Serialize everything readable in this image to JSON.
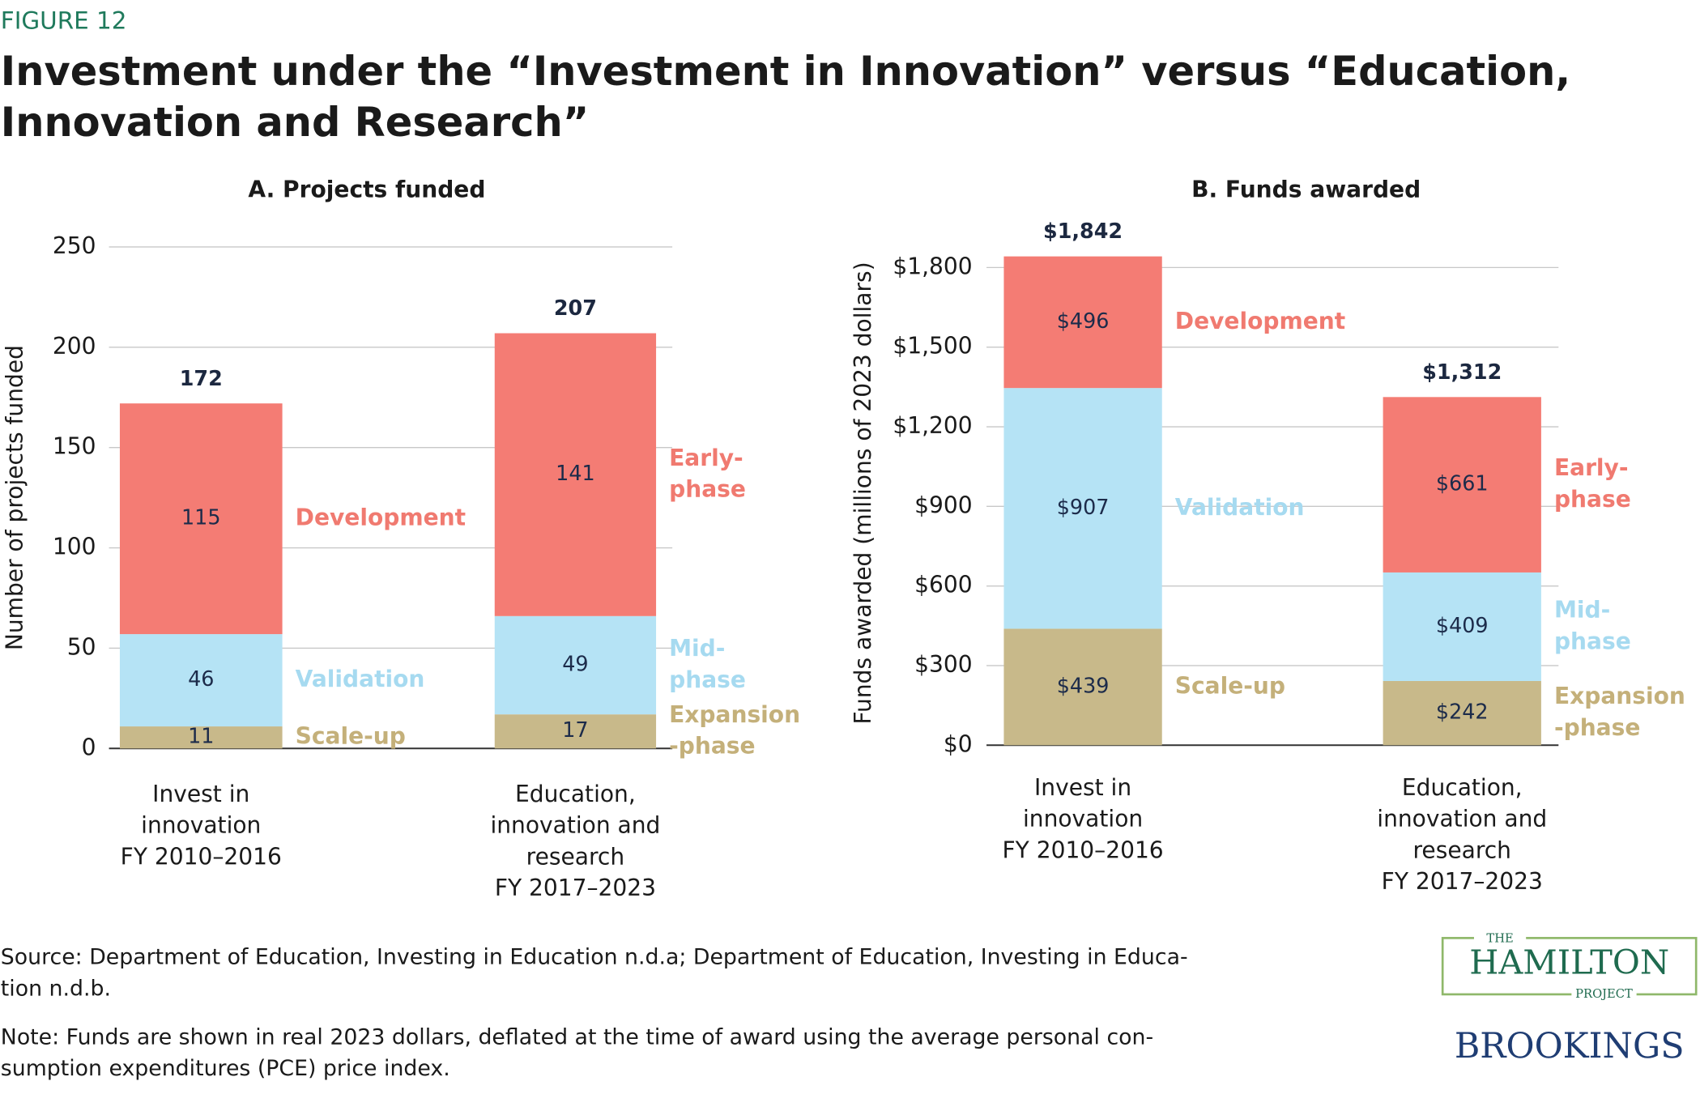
{
  "figure_label": "FIGURE 12",
  "title": "Investment under the “Investment in Innovation” versus “Education,\nInnovation and Research”",
  "chart_data": [
    {
      "type": "bar",
      "stacked": true,
      "title": "A. Projects funded",
      "y_label": "Number of projects funded",
      "categories": [
        "Invest in\ninnovation\nFY 2010–2016",
        "Education,\ninnovation and\nresearch\nFY 2017–2023"
      ],
      "series": [
        {
          "name": "Scale-up",
          "color": "#c8b98a",
          "label_color": "#c4b07a",
          "values": [
            11,
            null
          ]
        },
        {
          "name": "Validation",
          "color": "#b5e3f5",
          "label_color": "#a6daf0",
          "values": [
            46,
            null
          ]
        },
        {
          "name": "Development",
          "color": "#f47c74",
          "label_color": "#f07a70",
          "values": [
            115,
            null
          ]
        },
        {
          "name": "Expansion\n-phase",
          "color": "#c8b98a",
          "label_color": "#c4b07a",
          "values": [
            null,
            17
          ]
        },
        {
          "name": "Mid-\nphase",
          "color": "#b5e3f5",
          "label_color": "#a6daf0",
          "values": [
            null,
            49
          ]
        },
        {
          "name": "Early-\nphase",
          "color": "#f47c74",
          "label_color": "#f07a70",
          "values": [
            null,
            141
          ]
        }
      ],
      "totals": [
        172,
        207
      ],
      "ylim": [
        0,
        250
      ],
      "yticks": [
        0,
        50,
        100,
        150,
        200,
        250
      ],
      "grid": true
    },
    {
      "type": "bar",
      "stacked": true,
      "title": "B. Funds awarded",
      "y_label": "Funds awarded (millions of 2023 dollars)",
      "categories": [
        "Invest in\ninnovation\nFY 2010–2016",
        "Education,\ninnovation and\nresearch\nFY 2017–2023"
      ],
      "series": [
        {
          "name": "Scale-up",
          "color": "#c8b98a",
          "label_color": "#c4b07a",
          "values": [
            439,
            null
          ],
          "value_labels": [
            "$439",
            null
          ]
        },
        {
          "name": "Validation",
          "color": "#b5e3f5",
          "label_color": "#a6daf0",
          "values": [
            907,
            null
          ],
          "value_labels": [
            "$907",
            null
          ]
        },
        {
          "name": "Development",
          "color": "#f47c74",
          "label_color": "#f07a70",
          "values": [
            496,
            null
          ],
          "value_labels": [
            "$496",
            null
          ]
        },
        {
          "name": "Expansion\n-phase",
          "color": "#c8b98a",
          "label_color": "#c4b07a",
          "values": [
            null,
            242
          ],
          "value_labels": [
            null,
            "$242"
          ]
        },
        {
          "name": "Mid-\nphase",
          "color": "#b5e3f5",
          "label_color": "#a6daf0",
          "values": [
            null,
            409
          ],
          "value_labels": [
            null,
            "$409"
          ]
        },
        {
          "name": "Early-\nphase",
          "color": "#f47c74",
          "label_color": "#f07a70",
          "values": [
            null,
            661
          ],
          "value_labels": [
            null,
            "$661"
          ]
        }
      ],
      "totals": [
        1842,
        1312
      ],
      "total_labels": [
        "$1,842",
        "$1,312"
      ],
      "ylim": [
        0,
        1900
      ],
      "yticks": [
        {
          "value": 0,
          "label": "$0"
        },
        {
          "value": 300,
          "label": "$300"
        },
        {
          "value": 600,
          "label": "$600"
        },
        {
          "value": 900,
          "label": "$900"
        },
        {
          "value": 1200,
          "label": "$1,200"
        },
        {
          "value": 1500,
          "label": "$1,500"
        },
        {
          "value": 1800,
          "label": "$1,800"
        }
      ],
      "grid": true
    }
  ],
  "source": "Source: Department of Education, Investing in Education n.d.a; Department of Education, Investing in Educa-\ntion n.d.b.",
  "note": "Note: Funds are shown in real 2023 dollars, deflated at the time of award using the average personal con-\nsumption expenditures (PCE) price index.",
  "logo": {
    "the": "THE",
    "hamilton": "HAMILTON",
    "project": "PROJECT",
    "brookings": "BROOKINGS"
  }
}
